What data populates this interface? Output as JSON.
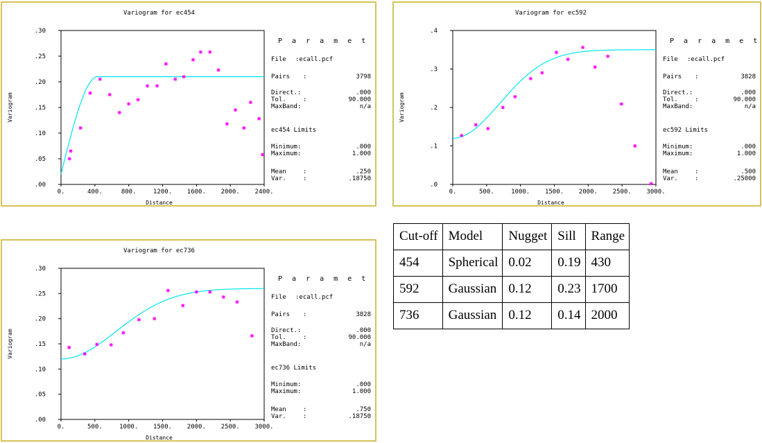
{
  "colors": {
    "frame": "#d4c25a",
    "model": "#00e5ee",
    "points": "#ff00ff",
    "axis": "#000000"
  },
  "chart_data": [
    {
      "type": "scatter",
      "title": "Variogram for ec454",
      "xlabel": "Distance",
      "ylabel": "Variogram",
      "xlim": [
        0,
        2400
      ],
      "ylim": [
        0,
        0.3
      ],
      "xticks": [
        0,
        400,
        800,
        1200,
        1600,
        2000,
        2400
      ],
      "xtick_labels": [
        "0.",
        "400.",
        "800.",
        "1200.",
        "1600.",
        "2000.",
        "2400."
      ],
      "yticks": [
        0,
        0.05,
        0.1,
        0.15,
        0.2,
        0.25,
        0.3
      ],
      "ytick_labels": [
        ".00",
        ".05",
        ".10",
        ".15",
        ".20",
        ".25",
        ".30"
      ],
      "model": {
        "type": "spherical",
        "nugget": 0.02,
        "sill": 0.19,
        "range": 430
      },
      "points": [
        [
          100,
          0.05
        ],
        [
          115,
          0.065
        ],
        [
          230,
          0.11
        ],
        [
          345,
          0.178
        ],
        [
          460,
          0.205
        ],
        [
          575,
          0.175
        ],
        [
          690,
          0.14
        ],
        [
          800,
          0.157
        ],
        [
          910,
          0.165
        ],
        [
          1020,
          0.192
        ],
        [
          1135,
          0.192
        ],
        [
          1240,
          0.235
        ],
        [
          1350,
          0.205
        ],
        [
          1450,
          0.21
        ],
        [
          1560,
          0.243
        ],
        [
          1650,
          0.258
        ],
        [
          1760,
          0.258
        ],
        [
          1860,
          0.223
        ],
        [
          1960,
          0.118
        ],
        [
          2060,
          0.145
        ],
        [
          2160,
          0.11
        ],
        [
          2240,
          0.16
        ],
        [
          2340,
          0.128
        ],
        [
          2380,
          0.058
        ]
      ],
      "parameters": {
        "heading": "P a r a m e t e r s",
        "file_label": "File",
        "file_value": ":ecall.pcf",
        "pairs_label": "Pairs",
        "pairs_value": "3798",
        "direct_label": "Direct.:",
        "direct_value": ".000",
        "tol_label": "Tol.",
        "tol_value": "90.000",
        "maxband_label": "MaxBand:",
        "maxband_value": "n/a",
        "limits_heading": "ec454 Limits",
        "min_label": "Minimum:",
        "min_value": ".000",
        "max_label": "Maximum:",
        "max_value": "1.000",
        "mean_label": "Mean",
        "mean_value": ".250",
        "var_label": "Var.",
        "var_value": ".18750"
      }
    },
    {
      "type": "scatter",
      "title": "Variogram for ec592",
      "xlabel": "Distance",
      "ylabel": "Variogram",
      "xlim": [
        0,
        3000
      ],
      "ylim": [
        0,
        0.4
      ],
      "xticks": [
        0,
        500,
        1000,
        1500,
        2000,
        2500,
        3000
      ],
      "xtick_labels": [
        "0.",
        "500.",
        "1000.",
        "1500.",
        "2000.",
        "2500.",
        "3000."
      ],
      "yticks": [
        0,
        0.1,
        0.2,
        0.3,
        0.4
      ],
      "ytick_labels": [
        ".0",
        ".1",
        ".2",
        ".3",
        ".4"
      ],
      "model": {
        "type": "gaussian",
        "nugget": 0.12,
        "sill": 0.23,
        "range": 1700
      },
      "points": [
        [
          130,
          0.127
        ],
        [
          340,
          0.155
        ],
        [
          520,
          0.145
        ],
        [
          740,
          0.2
        ],
        [
          920,
          0.228
        ],
        [
          1150,
          0.275
        ],
        [
          1320,
          0.29
        ],
        [
          1530,
          0.343
        ],
        [
          1700,
          0.325
        ],
        [
          1920,
          0.356
        ],
        [
          2100,
          0.305
        ],
        [
          2290,
          0.333
        ],
        [
          2490,
          0.209
        ],
        [
          2690,
          0.1
        ],
        [
          2930,
          0.002
        ]
      ],
      "parameters": {
        "heading": "P a r a m e t e r s",
        "file_label": "File",
        "file_value": ":ecall.pcf",
        "pairs_label": "Pairs",
        "pairs_value": "3828",
        "direct_label": "Direct.:",
        "direct_value": ".000",
        "tol_label": "Tol.",
        "tol_value": "90.000",
        "maxband_label": "MaxBand:",
        "maxband_value": "n/a",
        "limits_heading": "ec592 Limits",
        "min_label": "Minimum:",
        "min_value": ".000",
        "max_label": "Maximum:",
        "max_value": "1.000",
        "mean_label": "Mean",
        "mean_value": ".500",
        "var_label": "Var.",
        "var_value": ".25000"
      }
    },
    {
      "type": "scatter",
      "title": "Variogram for ec736",
      "xlabel": "Distance",
      "ylabel": "Variogram",
      "xlim": [
        0,
        3000
      ],
      "ylim": [
        0,
        0.3
      ],
      "xticks": [
        0,
        500,
        1000,
        1500,
        2000,
        2500,
        3000
      ],
      "xtick_labels": [
        "0.",
        "500.",
        "1000.",
        "1500.",
        "2000.",
        "2500.",
        "3000."
      ],
      "yticks": [
        0,
        0.05,
        0.1,
        0.15,
        0.2,
        0.25,
        0.3
      ],
      "ytick_labels": [
        ".00",
        ".05",
        ".10",
        ".15",
        ".20",
        ".25",
        ".30"
      ],
      "model": {
        "type": "gaussian",
        "nugget": 0.12,
        "sill": 0.14,
        "range": 2000
      },
      "points": [
        [
          120,
          0.143
        ],
        [
          350,
          0.13
        ],
        [
          530,
          0.149
        ],
        [
          740,
          0.148
        ],
        [
          920,
          0.172
        ],
        [
          1150,
          0.198
        ],
        [
          1380,
          0.2
        ],
        [
          1580,
          0.256
        ],
        [
          1800,
          0.226
        ],
        [
          2000,
          0.253
        ],
        [
          2200,
          0.253
        ],
        [
          2400,
          0.243
        ],
        [
          2600,
          0.233
        ],
        [
          2820,
          0.166
        ]
      ],
      "parameters": {
        "heading": "P a r a m e t e r s",
        "file_label": "File",
        "file_value": ":ecall.pcf",
        "pairs_label": "Pairs",
        "pairs_value": "3828",
        "direct_label": "Direct.:",
        "direct_value": ".000",
        "tol_label": "Tol.",
        "tol_value": "90.000",
        "maxband_label": "MaxBand:",
        "maxband_value": "n/a",
        "limits_heading": "ec736 Limits",
        "min_label": "Minimum:",
        "min_value": ".000",
        "max_label": "Maximum:",
        "max_value": "1.000",
        "mean_label": "Mean",
        "mean_value": ".750",
        "var_label": "Var.",
        "var_value": ".18750"
      }
    }
  ],
  "table": {
    "headers": [
      "Cut-off",
      "Model",
      "Nugget",
      "Sill",
      "Range"
    ],
    "rows": [
      [
        "454",
        "Spherical",
        "0.02",
        "0.19",
        "430"
      ],
      [
        "592",
        "Gaussian",
        "0.12",
        "0.23",
        "1700"
      ],
      [
        "736",
        "Gaussian",
        "0.12",
        "0.14",
        "2000"
      ]
    ]
  }
}
